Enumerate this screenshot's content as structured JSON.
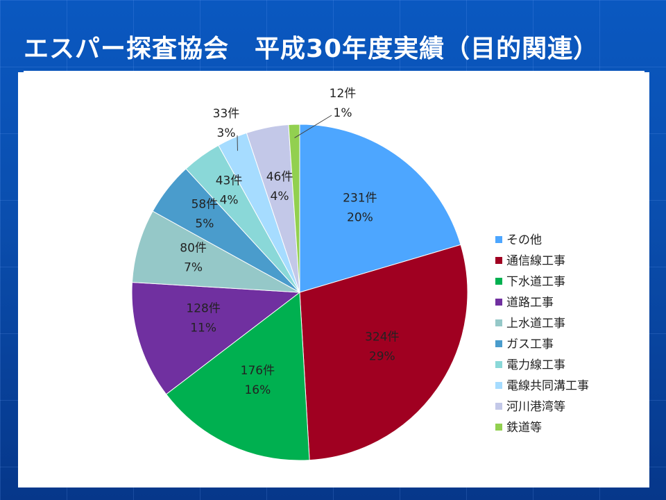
{
  "title": "エスパー探査協会　平成30年度実績（目的関連）",
  "chart_data": {
    "type": "pie",
    "title": "",
    "start_angle_deg": 0,
    "direction": "clockwise",
    "legend_position": "right",
    "slices": [
      {
        "name": "その他",
        "count": 231,
        "count_label": "231件",
        "percent_label": "20%",
        "color": "#4da6ff"
      },
      {
        "name": "通信線工事",
        "count": 324,
        "count_label": "324件",
        "percent_label": "29%",
        "color": "#a00021"
      },
      {
        "name": "下水道工事",
        "count": 176,
        "count_label": "176件",
        "percent_label": "16%",
        "color": "#00b050"
      },
      {
        "name": "道路工事",
        "count": 128,
        "count_label": "128件",
        "percent_label": "11%",
        "color": "#7030a0"
      },
      {
        "name": "上水道工事",
        "count": 80,
        "count_label": "80件",
        "percent_label": "7%",
        "color": "#95c8c8"
      },
      {
        "name": "ガス工事",
        "count": 58,
        "count_label": "58件",
        "percent_label": "5%",
        "color": "#4a9ccc"
      },
      {
        "name": "電力線工事",
        "count": 43,
        "count_label": "43件",
        "percent_label": "4%",
        "color": "#8ad8d8"
      },
      {
        "name": "電線共同溝工事",
        "count": 33,
        "count_label": "33件",
        "percent_label": "3%",
        "color": "#a6dcff"
      },
      {
        "name": "河川港湾等",
        "count": 46,
        "count_label": "46件",
        "percent_label": "4%",
        "color": "#c3c8e8"
      },
      {
        "name": "鉄道等",
        "count": 12,
        "count_label": "12件",
        "percent_label": "1%",
        "color": "#92d050"
      }
    ]
  }
}
